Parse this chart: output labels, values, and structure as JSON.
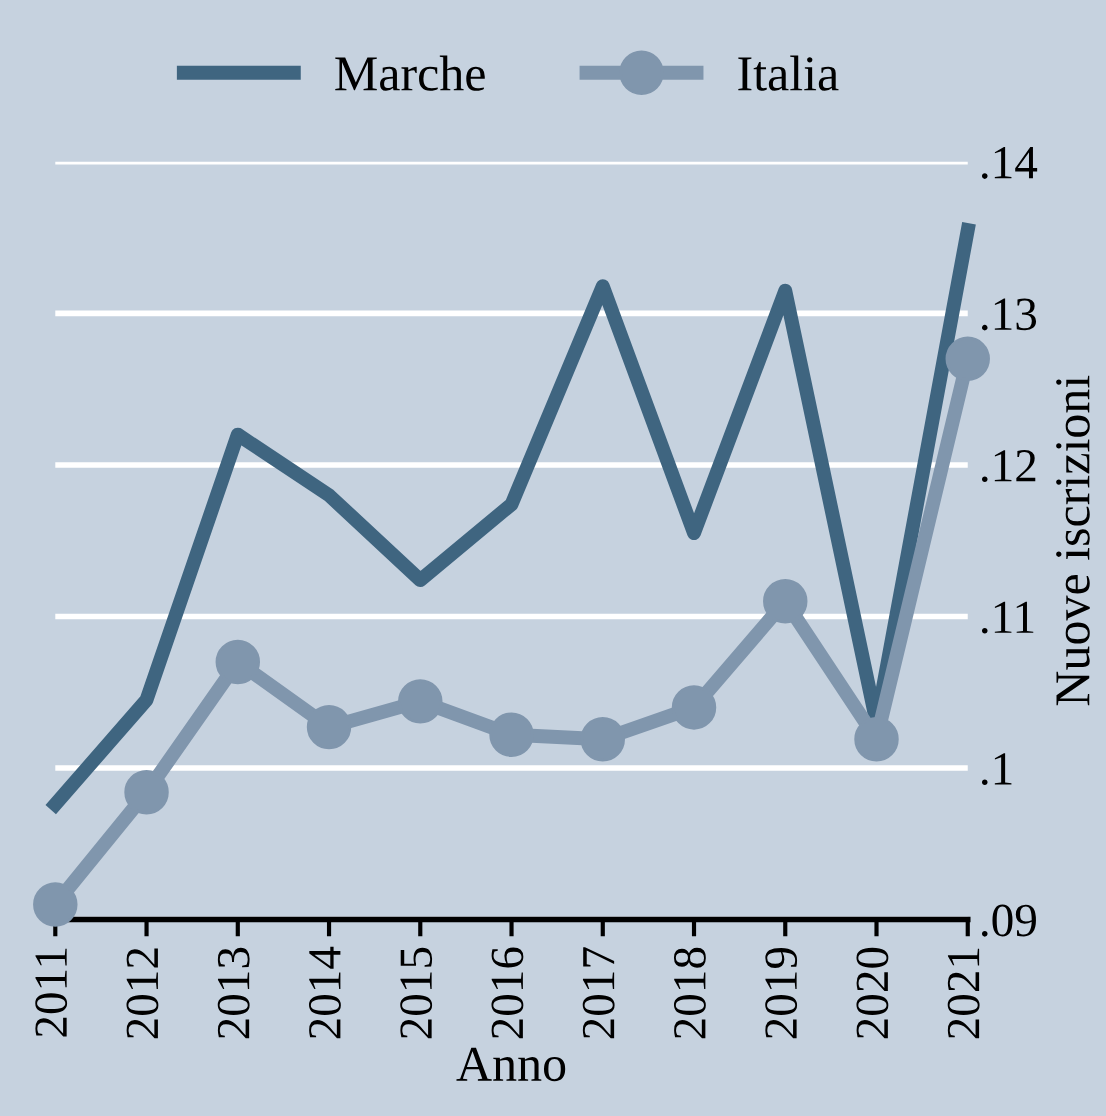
{
  "chart_data": {
    "type": "line",
    "xlabel": "Anno",
    "ylabel": "Nuove iscrizioni",
    "x": [
      2011,
      2012,
      2013,
      2014,
      2015,
      2016,
      2017,
      2018,
      2019,
      2020,
      2021
    ],
    "series": [
      {
        "name": "Marche",
        "color": "#3f6580",
        "marker": "none",
        "values": [
          0.0976,
          0.1045,
          0.122,
          0.118,
          0.1124,
          0.1174,
          0.1318,
          0.1155,
          0.1315,
          0.103,
          0.1355
        ]
      },
      {
        "name": "Italia",
        "color": "#8096ad",
        "marker": "circle",
        "values": [
          0.091,
          0.0984,
          0.107,
          0.1027,
          0.1044,
          0.1022,
          0.1019,
          0.104,
          0.111,
          0.1019,
          0.127
        ]
      }
    ],
    "xlim": [
      2011,
      2021
    ],
    "xticks": [
      2011,
      2012,
      2013,
      2014,
      2015,
      2016,
      2017,
      2018,
      2019,
      2020,
      2021
    ],
    "ylim": [
      0.09,
      0.14
    ],
    "yticks": [
      {
        "value": 0.09,
        "label": ".09"
      },
      {
        "value": 0.1,
        "label": ".1"
      },
      {
        "value": 0.11,
        "label": ".11"
      },
      {
        "value": 0.12,
        "label": ".12"
      },
      {
        "value": 0.13,
        "label": ".13"
      },
      {
        "value": 0.14,
        "label": ".14"
      }
    ],
    "grid": "y",
    "legend": "top",
    "line_style": "solid"
  }
}
